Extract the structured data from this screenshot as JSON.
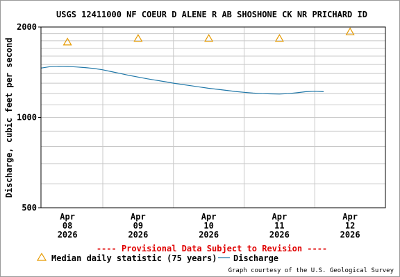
{
  "chart_data": {
    "type": "line",
    "title": "USGS 12411000 NF COEUR D ALENE R AB SHOSHONE CK NR PRICHARD ID",
    "ylabel": "Discharge, cubic feet per second",
    "xlabel": "",
    "y_scale": "log",
    "ylim": [
      500,
      2000
    ],
    "y_ticks": [
      {
        "value": 500,
        "label": "500"
      },
      {
        "value": 1000,
        "label": "1000"
      },
      {
        "value": 2000,
        "label": "2000"
      }
    ],
    "xlim": [
      "2026-04-07T15:00",
      "2026-04-12T12:00"
    ],
    "x_ticks": [
      {
        "x": "2026-04-08T00:00",
        "month": "Apr",
        "day": "08",
        "year": "2026"
      },
      {
        "x": "2026-04-09T00:00",
        "month": "Apr",
        "day": "09",
        "year": "2026"
      },
      {
        "x": "2026-04-10T00:00",
        "month": "Apr",
        "day": "10",
        "year": "2026"
      },
      {
        "x": "2026-04-11T00:00",
        "month": "Apr",
        "day": "11",
        "year": "2026"
      },
      {
        "x": "2026-04-12T00:00",
        "month": "Apr",
        "day": "12",
        "year": "2026"
      }
    ],
    "grid": true,
    "series": [
      {
        "name": "Discharge",
        "color": "#1f77a8",
        "x": [
          "2026-04-07T15:00",
          "2026-04-07T18:00",
          "2026-04-07T21:00",
          "2026-04-08T00:00",
          "2026-04-08T03:00",
          "2026-04-08T06:00",
          "2026-04-08T09:00",
          "2026-04-08T12:00",
          "2026-04-08T15:00",
          "2026-04-08T18:00",
          "2026-04-08T21:00",
          "2026-04-09T00:00",
          "2026-04-09T03:00",
          "2026-04-09T06:00",
          "2026-04-09T09:00",
          "2026-04-09T12:00",
          "2026-04-09T15:00",
          "2026-04-09T18:00",
          "2026-04-09T21:00",
          "2026-04-10T00:00",
          "2026-04-10T03:00",
          "2026-04-10T06:00",
          "2026-04-10T09:00",
          "2026-04-10T12:00",
          "2026-04-10T15:00",
          "2026-04-10T18:00",
          "2026-04-10T21:00",
          "2026-04-11T00:00",
          "2026-04-11T03:00",
          "2026-04-11T06:00",
          "2026-04-11T09:00",
          "2026-04-11T12:00",
          "2026-04-11T15:00"
        ],
        "y": [
          1460,
          1475,
          1480,
          1478,
          1472,
          1465,
          1455,
          1440,
          1420,
          1400,
          1380,
          1362,
          1345,
          1330,
          1315,
          1300,
          1287,
          1275,
          1262,
          1250,
          1240,
          1230,
          1220,
          1212,
          1205,
          1200,
          1198,
          1196,
          1200,
          1208,
          1218,
          1222,
          1218
        ]
      }
    ],
    "markers": [
      {
        "name": "Median daily statistic (75 years)",
        "color": "#e69a00",
        "symbol": "triangle",
        "x": [
          "2026-04-08T00:00",
          "2026-04-09T00:00",
          "2026-04-10T00:00",
          "2026-04-11T00:00",
          "2026-04-12T00:00"
        ],
        "y": [
          1785,
          1835,
          1835,
          1835,
          1930
        ]
      }
    ],
    "annotations": {
      "provisional": "---- Provisional Data Subject to Revision ----",
      "courtesy": "Graph courtesy of the U.S. Geological Survey"
    },
    "legend_position": "bottom-left"
  }
}
